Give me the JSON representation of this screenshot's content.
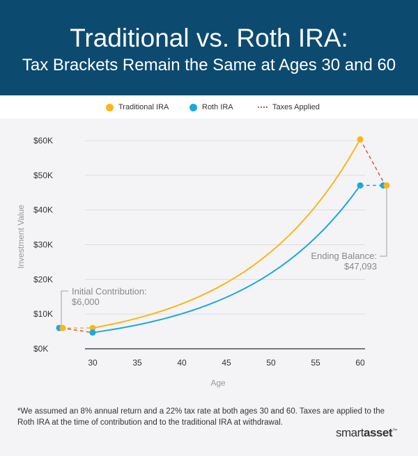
{
  "header": {
    "title": "Traditional vs. Roth IRA:",
    "subtitle": "Tax Brackets Remain the Same at Ages 30 and 60"
  },
  "colors": {
    "header_bg": "#0d4a70",
    "traditional": "#fbb617",
    "roth": "#1ba8e0",
    "taxes": "#d9534f"
  },
  "chart_data": {
    "type": "line",
    "xlabel": "Age",
    "ylabel": "Investment Value",
    "xlim": [
      30,
      60
    ],
    "ylim": [
      0,
      60000
    ],
    "x_ticks": [
      "30",
      "35",
      "40",
      "45",
      "50",
      "55",
      "60"
    ],
    "y_ticks": [
      "$0K",
      "$10K",
      "$20K",
      "$30K",
      "$40K",
      "$50K",
      "$60K"
    ],
    "grid": true,
    "legend_placement": "top",
    "x": [
      30,
      31,
      32,
      33,
      34,
      35,
      36,
      37,
      38,
      39,
      40,
      41,
      42,
      43,
      44,
      45,
      46,
      47,
      48,
      49,
      50,
      51,
      52,
      53,
      54,
      55,
      56,
      57,
      58,
      59,
      60
    ],
    "series": [
      {
        "name": "Traditional IRA",
        "values": [
          6000,
          6480,
          6998,
          7558,
          8163,
          8816,
          9521,
          10283,
          11105,
          11994,
          12954,
          13990,
          15109,
          16318,
          17623,
          19033,
          20556,
          22200,
          23976,
          25894,
          27966,
          30203,
          32619,
          35229,
          38047,
          41091,
          44378,
          47929,
          51763,
          55904,
          60376
        ]
      },
      {
        "name": "Roth IRA",
        "values": [
          4680,
          5054,
          5459,
          5895,
          6367,
          6876,
          7427,
          8021,
          8662,
          9355,
          10104,
          10912,
          11785,
          12728,
          13746,
          14846,
          16033,
          17316,
          18701,
          20197,
          21813,
          23558,
          25443,
          27478,
          29676,
          32051,
          34615,
          37384,
          40374,
          43604,
          47093
        ]
      }
    ],
    "taxes_label": "Taxes Applied",
    "initial_contribution": 6000,
    "ending_balance": 47093,
    "annotations": {
      "initial_title": "Initial Contribution:",
      "initial_value": "$6,000",
      "ending_title": "Ending Balance:",
      "ending_value": "$47,093"
    }
  },
  "footnote": "*We assumed an 8% annual return and a 22% tax rate at both ages 30 and 60. Taxes are applied to the Roth IRA at the time of contribution and to the traditional IRA at withdrawal.",
  "logo": "smartasset"
}
